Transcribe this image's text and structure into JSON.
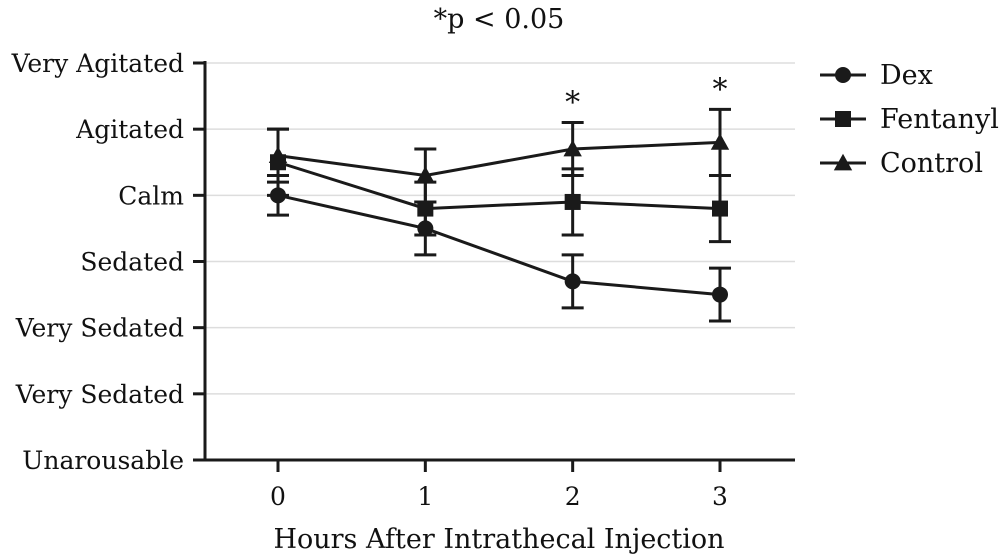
{
  "chart_data": {
    "type": "line",
    "title": "*p < 0.05",
    "xlabel": "Hours After Intrathecal Injection",
    "ylabel": "",
    "x": [
      0,
      1,
      2,
      3
    ],
    "x_tick_labels": [
      "0",
      "1",
      "2",
      "3"
    ],
    "y_tick_labels": [
      "Unarousable",
      "Very Sedated",
      "Very Sedated",
      "Sedated",
      "Calm",
      "Agitated",
      "Very Agitated"
    ],
    "ylim": [
      1,
      7
    ],
    "grid": "horizontal",
    "legend_position": "right",
    "significance_marker": "*",
    "significance_at_x": [
      2,
      3
    ],
    "series": [
      {
        "name": "Dex",
        "marker": "circle",
        "values": [
          5.0,
          4.5,
          3.7,
          3.5
        ],
        "error": [
          0.3,
          0.4,
          0.4,
          0.4
        ]
      },
      {
        "name": "Fentanyl",
        "marker": "square",
        "values": [
          5.5,
          4.8,
          4.9,
          4.8
        ],
        "error": [
          0.5,
          0.4,
          0.5,
          0.5
        ]
      },
      {
        "name": "Control",
        "marker": "triangle",
        "values": [
          5.6,
          5.3,
          5.7,
          5.8
        ],
        "error": [
          0.4,
          0.4,
          0.4,
          0.5
        ]
      }
    ],
    "colors": {
      "lines": "#1a1a1a",
      "grid": "#dddddd",
      "axis": "#1a1a1a"
    }
  }
}
